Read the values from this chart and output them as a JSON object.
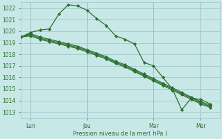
{
  "background_color": "#c8e8e8",
  "grid_color": "#a0c8c8",
  "line_color": "#2d6e2d",
  "marker_color": "#2d6e2d",
  "xlabel": "Pression niveau de la mer( hPa )",
  "ylim": [
    1012.5,
    1022.5
  ],
  "yticks": [
    1013,
    1014,
    1015,
    1016,
    1017,
    1018,
    1019,
    1020,
    1021,
    1022
  ],
  "xlim": [
    0,
    21
  ],
  "xtick_positions": [
    1,
    7,
    14,
    19
  ],
  "xtick_labels": [
    "Lun",
    "Jeu",
    "Mar",
    "Mer"
  ],
  "vline_positions": [
    1,
    7,
    14,
    19
  ],
  "series1": [
    1019.5,
    1019.9,
    1020.1,
    1020.2,
    1021.5,
    1022.3,
    1022.2,
    1021.8,
    1021.1,
    1020.5,
    1019.6,
    1019.3,
    1018.9,
    1017.3,
    1017.0,
    1016.0,
    1015.0,
    1013.2,
    1014.2,
    1014.1,
    1013.7
  ],
  "series2": [
    1019.5,
    1019.6,
    1019.3,
    1019.1,
    1018.9,
    1018.7,
    1018.5,
    1018.2,
    1017.9,
    1017.6,
    1017.2,
    1016.9,
    1016.5,
    1016.1,
    1015.7,
    1015.3,
    1014.9,
    1014.5,
    1014.1,
    1013.7,
    1013.4
  ],
  "series3": [
    1019.5,
    1019.7,
    1019.4,
    1019.2,
    1019.0,
    1018.8,
    1018.6,
    1018.3,
    1018.0,
    1017.7,
    1017.3,
    1017.0,
    1016.6,
    1016.2,
    1015.8,
    1015.4,
    1015.0,
    1014.6,
    1014.2,
    1013.8,
    1013.5
  ],
  "series4": [
    1019.5,
    1019.8,
    1019.5,
    1019.3,
    1019.1,
    1018.9,
    1018.7,
    1018.4,
    1018.1,
    1017.8,
    1017.4,
    1017.1,
    1016.7,
    1016.3,
    1015.9,
    1015.5,
    1015.1,
    1014.7,
    1014.3,
    1013.9,
    1013.6
  ],
  "figsize": [
    3.2,
    2.0
  ],
  "dpi": 100
}
